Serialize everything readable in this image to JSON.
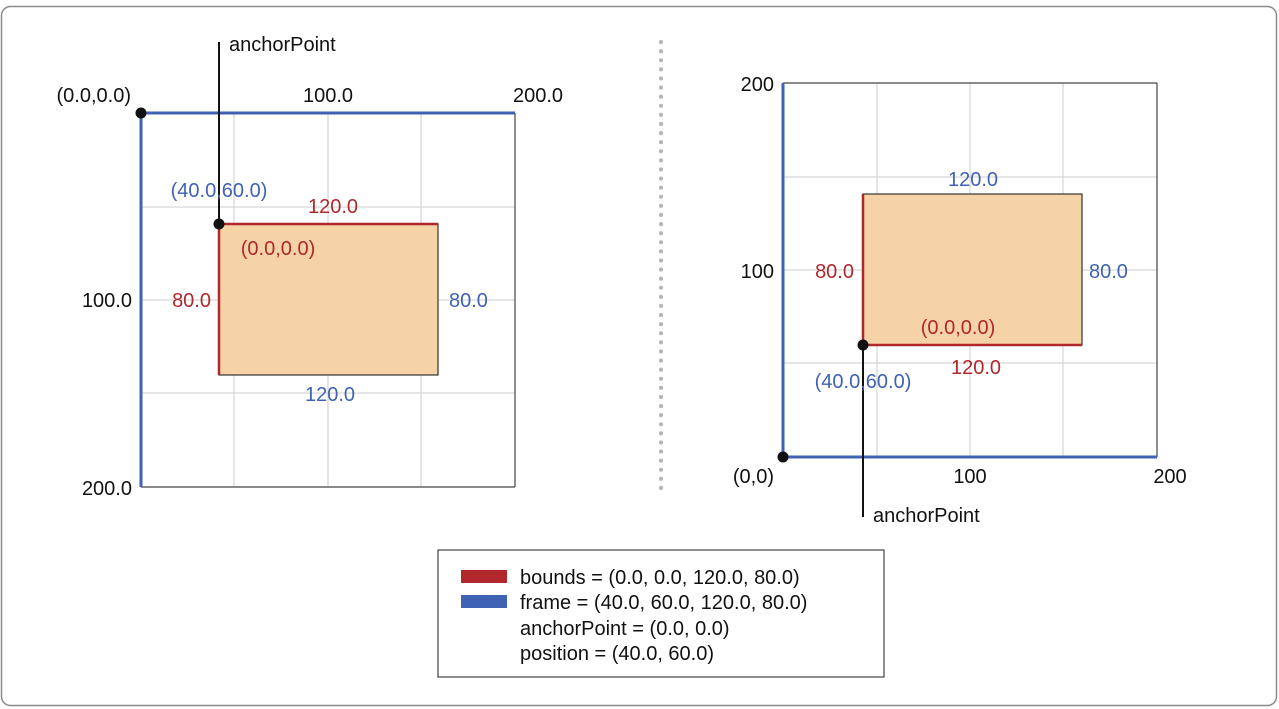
{
  "colors": {
    "bounds": "#b0282c",
    "frame": "#3f62b5",
    "layer_fill": "#f5d3a6",
    "grid": "#cccccc",
    "text": "#111111"
  },
  "left_diagram": {
    "origin_label": "(0.0,0.0)",
    "x_ticks": [
      "100.0",
      "200.0"
    ],
    "y_ticks": [
      "100.0",
      "200.0"
    ],
    "anchor_label": "anchorPoint",
    "frame_origin_label": "(40.0,60.0)",
    "bounds_origin_label": "(0.0,0.0)",
    "top_width_label": "120.0",
    "bottom_width_label": "120.0",
    "left_height_label": "80.0",
    "right_height_label": "80.0"
  },
  "right_diagram": {
    "origin_label": "(0,0)",
    "x_ticks": [
      "100",
      "200"
    ],
    "y_ticks": [
      "100",
      "200"
    ],
    "anchor_label": "anchorPoint",
    "frame_origin_label": "(40.0,60.0)",
    "bounds_origin_label": "(0.0,0.0)",
    "top_width_label": "120.0",
    "bottom_width_label": "120.0",
    "left_height_label": "80.0",
    "right_height_label": "80.0"
  },
  "legend": {
    "bounds": "bounds = (0.0, 0.0, 120.0, 80.0)",
    "frame": "frame = (40.0, 60.0, 120.0, 80.0)",
    "anchor_point": "anchorPoint = (0.0, 0.0)",
    "position": "position = (40.0, 60.0)"
  }
}
